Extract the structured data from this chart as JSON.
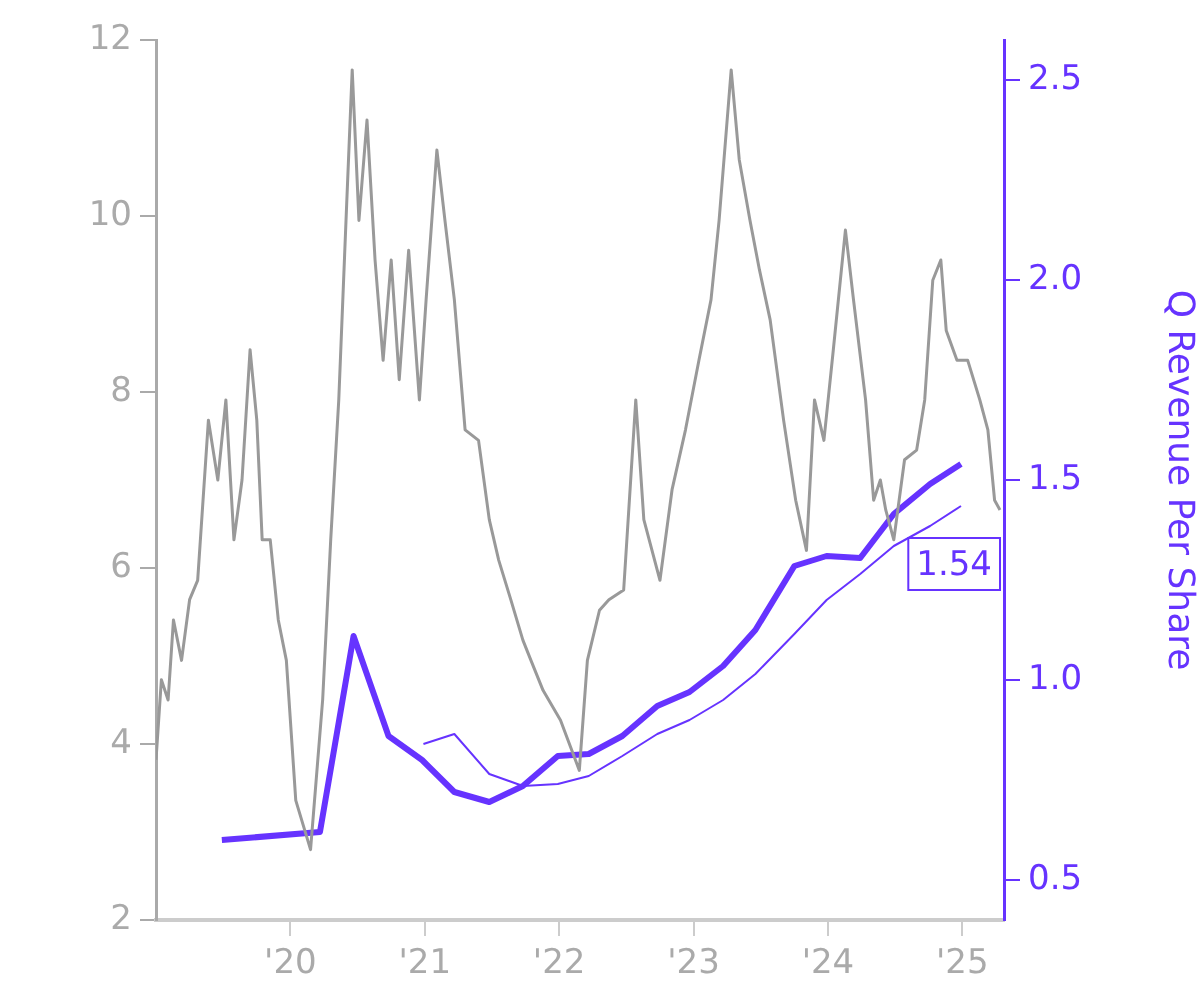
{
  "chart_data": {
    "type": "line",
    "y2label": "Q Revenue Per Share",
    "xlim": [
      2019,
      2025.31
    ],
    "xticks": [
      {
        "value": 2020,
        "label": "'20"
      },
      {
        "value": 2021,
        "label": "'21"
      },
      {
        "value": 2022,
        "label": "'22"
      },
      {
        "value": 2023,
        "label": "'23"
      },
      {
        "value": 2024,
        "label": "'24"
      },
      {
        "value": 2025,
        "label": "'25"
      }
    ],
    "ylim": [
      2,
      12
    ],
    "yticks": [
      2,
      4,
      6,
      8,
      10,
      12
    ],
    "y2lim": [
      0.4,
      2.6
    ],
    "y2ticks": [
      {
        "value": 0.5,
        "label": "0.5"
      },
      {
        "value": 1,
        "label": "1.0"
      },
      {
        "value": 1.5,
        "label": "1.5"
      },
      {
        "value": 2,
        "label": "2.0"
      },
      {
        "value": 2.5,
        "label": "2.5"
      }
    ],
    "grid": false,
    "legend": false,
    "marker": "none",
    "line_style": "solid",
    "annotations": [
      "1.54"
    ],
    "series": [
      {
        "color": "#999999",
        "x": [
          2019.0,
          2019.04,
          2019.09,
          2019.13,
          2019.19,
          2019.25,
          2019.31,
          2019.39,
          2019.46,
          2019.52,
          2019.58,
          2019.64,
          2019.7,
          2019.75,
          2019.79,
          2019.85,
          2019.91,
          2019.97,
          2020.04,
          2020.15,
          2020.24,
          2020.3,
          2020.36,
          2020.42,
          2020.46,
          2020.51,
          2020.57,
          2020.63,
          2020.69,
          2020.75,
          2020.81,
          2020.88,
          2020.96,
          2021.01,
          2021.09,
          2021.15,
          2021.22,
          2021.3,
          2021.4,
          2021.48,
          2021.55,
          2021.64,
          2021.73,
          2021.79,
          2021.88,
          2022.01,
          2022.15,
          2022.21,
          2022.3,
          2022.37,
          2022.48,
          2022.57,
          2022.63,
          2022.75,
          2022.84,
          2022.94,
          2023.04,
          2023.13,
          2023.19,
          2023.28,
          2023.34,
          2023.42,
          2023.49,
          2023.57,
          2023.67,
          2023.76,
          2023.84,
          2023.9,
          2023.97,
          2024.04,
          2024.13,
          2024.19,
          2024.28,
          2024.34,
          2024.39,
          2024.43,
          2024.49,
          2024.57,
          2024.66,
          2024.72,
          2024.78,
          2024.84,
          2024.88,
          2024.96,
          2025.04,
          2025.13,
          2025.19,
          2025.24,
          2025.28
        ],
        "values": [
          3.82,
          4.73,
          4.5,
          5.41,
          4.95,
          5.64,
          5.86,
          7.68,
          7.0,
          7.91,
          6.32,
          7.0,
          8.48,
          7.68,
          6.32,
          6.32,
          5.41,
          4.95,
          3.36,
          2.8,
          4.5,
          6.32,
          7.91,
          10.18,
          11.66,
          9.95,
          11.09,
          9.5,
          8.36,
          9.5,
          8.14,
          9.61,
          7.91,
          9.05,
          10.75,
          9.95,
          9.05,
          7.57,
          7.45,
          6.55,
          6.09,
          5.64,
          5.18,
          4.95,
          4.61,
          4.27,
          3.7,
          4.95,
          5.52,
          5.64,
          5.75,
          7.91,
          6.55,
          5.86,
          6.89,
          7.57,
          8.36,
          9.05,
          9.95,
          11.66,
          10.64,
          9.95,
          9.39,
          8.82,
          7.68,
          6.77,
          6.2,
          7.91,
          7.45,
          8.48,
          9.84,
          9.05,
          7.91,
          6.77,
          7.0,
          6.66,
          6.32,
          7.23,
          7.34,
          7.91,
          9.27,
          9.5,
          8.7,
          8.36,
          8.36,
          7.91,
          7.57,
          6.77,
          6.66
        ]
      },
      {
        "color": "#6633ff",
        "axis": "y2",
        "x": [
          2019.49,
          2020.22,
          2020.47,
          2020.73,
          2020.98,
          2021.22,
          2021.48,
          2021.73,
          2021.99,
          2022.22,
          2022.47,
          2022.73,
          2022.97,
          2023.22,
          2023.46,
          2023.75,
          2023.99,
          2024.24,
          2024.49,
          2024.76,
          2024.99
        ],
        "values": [
          0.6,
          0.62,
          1.11,
          0.86,
          0.8,
          0.72,
          0.695,
          0.735,
          0.81,
          0.815,
          0.86,
          0.935,
          0.97,
          1.035,
          1.125,
          1.285,
          1.31,
          1.305,
          1.415,
          1.49,
          1.54
        ]
      },
      {
        "color": "#6633ff",
        "axis": "y2",
        "x": [
          2020.99,
          2021.22,
          2021.48,
          2021.73,
          2021.99,
          2022.22,
          2022.47,
          2022.73,
          2022.97,
          2023.22,
          2023.46,
          2023.75,
          2023.99,
          2024.24,
          2024.49,
          2024.76,
          2024.99
        ],
        "values": [
          0.84,
          0.865,
          0.765,
          0.735,
          0.74,
          0.76,
          0.81,
          0.865,
          0.9,
          0.95,
          1.015,
          1.115,
          1.2,
          1.265,
          1.335,
          1.385,
          1.435
        ]
      }
    ]
  }
}
